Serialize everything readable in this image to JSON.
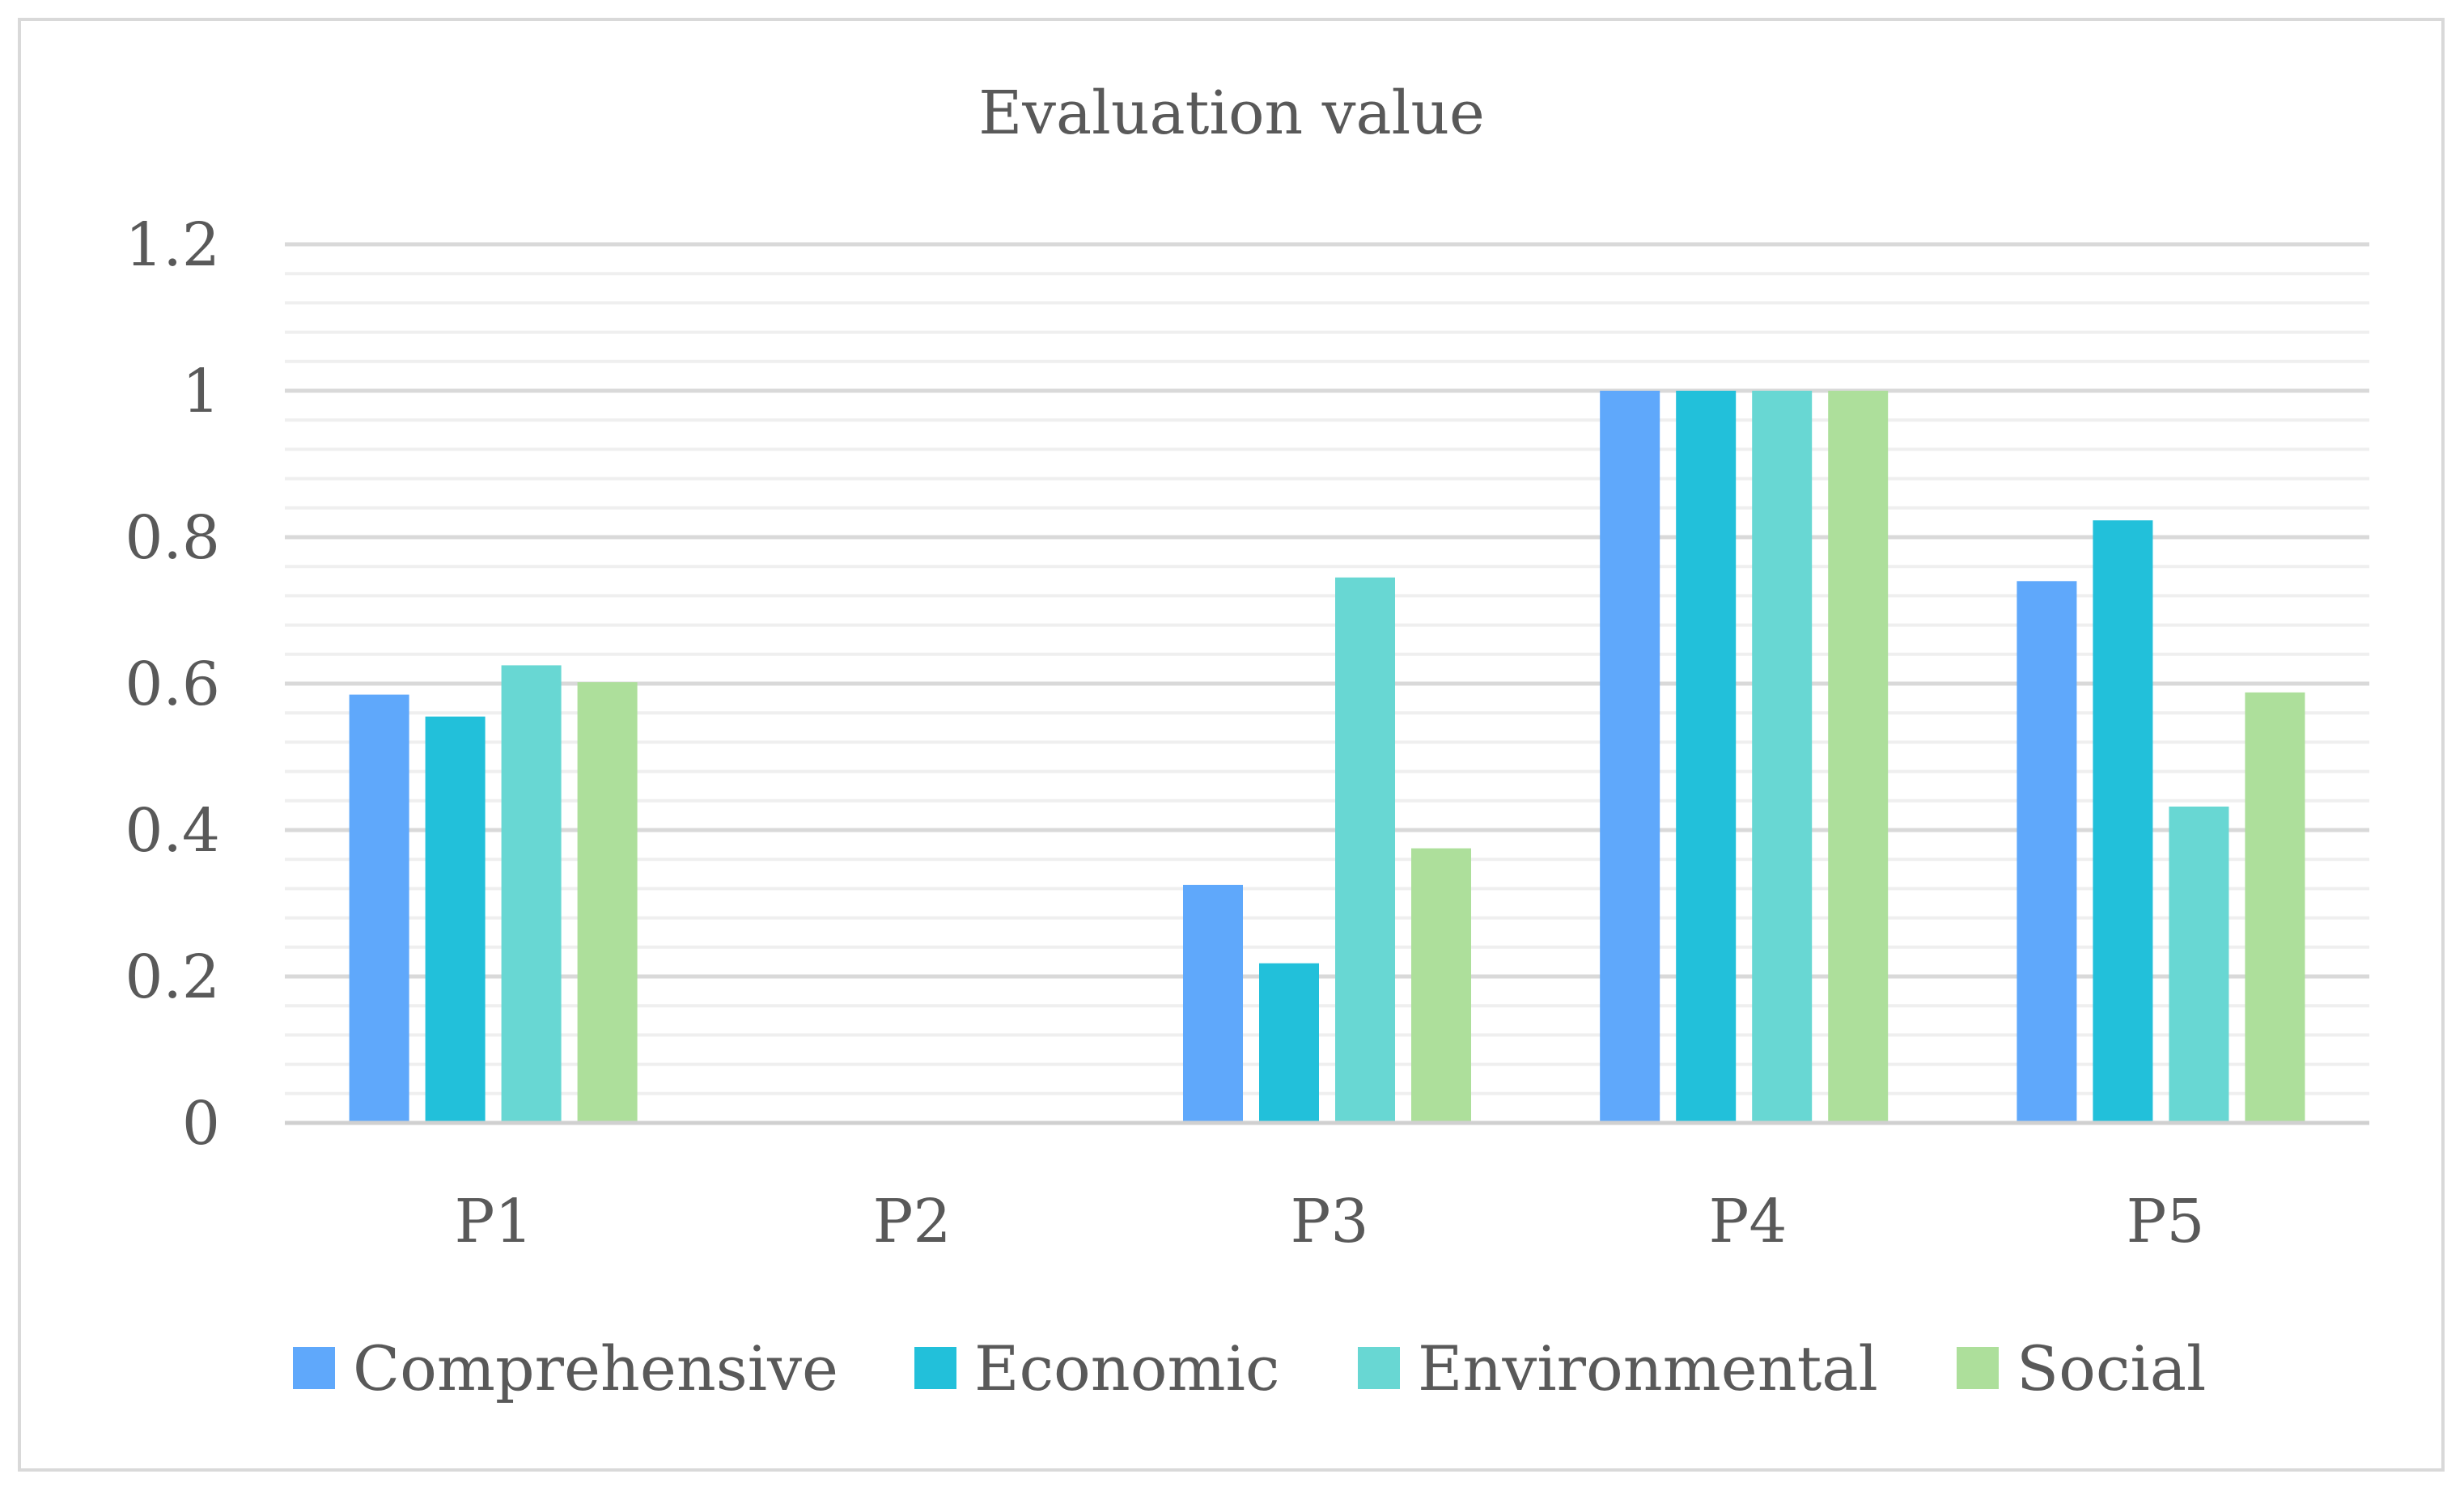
{
  "chart_data": {
    "type": "bar",
    "title": "Evaluation value",
    "categories": [
      "P1",
      "P2",
      "P3",
      "P4",
      "P5"
    ],
    "series": [
      {
        "name": "Comprehensive",
        "color": "#5fa8fb",
        "values": [
          0.585,
          0,
          0.325,
          1.0,
          0.74
        ]
      },
      {
        "name": "Economic",
        "color": "#22c0da",
        "values": [
          0.555,
          0,
          0.218,
          1.0,
          0.823
        ]
      },
      {
        "name": "Environmental",
        "color": "#68d7d3",
        "values": [
          0.625,
          0,
          0.745,
          1.0,
          0.432
        ]
      },
      {
        "name": "Social",
        "color": "#addf9b",
        "values": [
          0.602,
          0,
          0.375,
          1.0,
          0.588
        ]
      }
    ],
    "yticks": [
      "0",
      "0.2",
      "0.4",
      "0.6",
      "0.8",
      "1",
      "1.2"
    ],
    "ylim": [
      0,
      1.2
    ],
    "xlabel": "",
    "ylabel": "",
    "legend_position": "bottom",
    "grid": true
  }
}
